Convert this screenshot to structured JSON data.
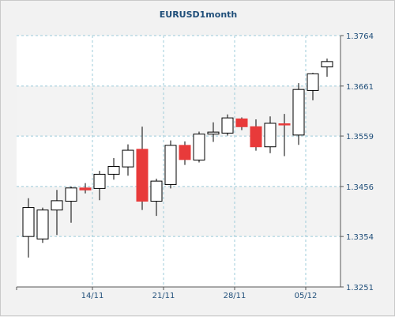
{
  "title": "EURUSD1month",
  "colors": {
    "up_fill": "#ffffff",
    "down_fill": "#e83a3a",
    "candle_outline": "#000000",
    "grid": "#9ccbd9",
    "band": "#f3f3f3",
    "axis_text": "#1f4e79"
  },
  "chart_data": {
    "type": "candlestick",
    "title": "EURUSD1month",
    "xlabel": "",
    "ylabel": "",
    "ylim": [
      1.3251,
      1.3764
    ],
    "y_ticks": [
      "1.3764",
      "1.3661",
      "1.3559",
      "1.3456",
      "1.3354",
      "1.3251"
    ],
    "x_ticks": [
      {
        "label": "14/11",
        "after_index": 4
      },
      {
        "label": "21/11",
        "after_index": 9
      },
      {
        "label": "28/11",
        "after_index": 14
      },
      {
        "label": "05/12",
        "after_index": 19
      }
    ],
    "y_axis_position": "right",
    "grid": true,
    "ohlc": [
      {
        "o": 1.3354,
        "h": 1.3432,
        "l": 1.3311,
        "c": 1.3413
      },
      {
        "o": 1.3349,
        "h": 1.3413,
        "l": 1.3341,
        "c": 1.3408
      },
      {
        "o": 1.3408,
        "h": 1.3449,
        "l": 1.3357,
        "c": 1.3427
      },
      {
        "o": 1.3426,
        "h": 1.3456,
        "l": 1.3382,
        "c": 1.3453
      },
      {
        "o": 1.3453,
        "h": 1.3463,
        "l": 1.3442,
        "c": 1.3449
      },
      {
        "o": 1.3452,
        "h": 1.3488,
        "l": 1.3428,
        "c": 1.3481
      },
      {
        "o": 1.3481,
        "h": 1.3514,
        "l": 1.347,
        "c": 1.3497
      },
      {
        "o": 1.3496,
        "h": 1.3542,
        "l": 1.3478,
        "c": 1.353
      },
      {
        "o": 1.3532,
        "h": 1.3578,
        "l": 1.3408,
        "c": 1.3426
      },
      {
        "o": 1.3426,
        "h": 1.3472,
        "l": 1.3396,
        "c": 1.3467
      },
      {
        "o": 1.346,
        "h": 1.355,
        "l": 1.3452,
        "c": 1.354
      },
      {
        "o": 1.354,
        "h": 1.3548,
        "l": 1.35,
        "c": 1.3511
      },
      {
        "o": 1.351,
        "h": 1.3568,
        "l": 1.3505,
        "c": 1.3563
      },
      {
        "o": 1.3563,
        "h": 1.3587,
        "l": 1.3547,
        "c": 1.3567
      },
      {
        "o": 1.3565,
        "h": 1.3603,
        "l": 1.356,
        "c": 1.3596
      },
      {
        "o": 1.3594,
        "h": 1.3597,
        "l": 1.3571,
        "c": 1.3578
      },
      {
        "o": 1.3578,
        "h": 1.3593,
        "l": 1.3529,
        "c": 1.3537
      },
      {
        "o": 1.3537,
        "h": 1.3599,
        "l": 1.3524,
        "c": 1.3585
      },
      {
        "o": 1.3584,
        "h": 1.3604,
        "l": 1.3518,
        "c": 1.3583
      },
      {
        "o": 1.3561,
        "h": 1.3667,
        "l": 1.3541,
        "c": 1.3654
      },
      {
        "o": 1.3652,
        "h": 1.3688,
        "l": 1.3632,
        "c": 1.3686
      },
      {
        "o": 1.37,
        "h": 1.3717,
        "l": 1.368,
        "c": 1.3711
      }
    ]
  }
}
